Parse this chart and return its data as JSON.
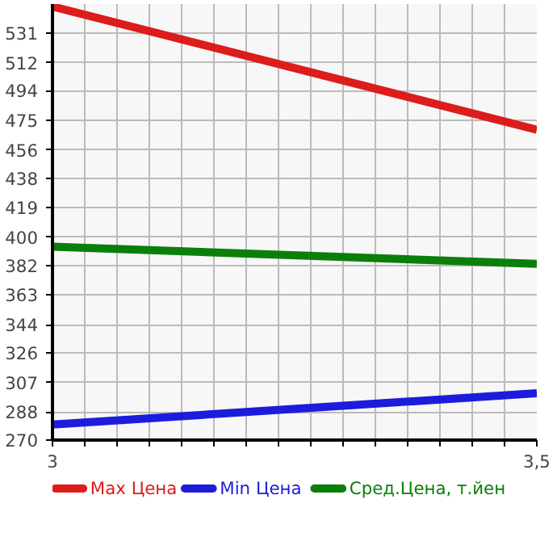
{
  "chart_data": {
    "type": "line",
    "x": [
      3,
      3.5
    ],
    "series": [
      {
        "name": "Max Цена",
        "color": "#dd1c1c",
        "values": [
          548,
          469
        ]
      },
      {
        "name": "Min Цена",
        "color": "#1c1cdd",
        "values": [
          280,
          300
        ]
      },
      {
        "name": "Сред.Цена, т.йен",
        "color": "#0a7f0a",
        "values": [
          394,
          383
        ]
      }
    ],
    "xlim": [
      3,
      3.5
    ],
    "xticks": [
      {
        "value": 3,
        "label": "3"
      },
      {
        "value": 3.033,
        "label": null
      },
      {
        "value": 3.067,
        "label": null
      },
      {
        "value": 3.1,
        "label": null
      },
      {
        "value": 3.133,
        "label": null
      },
      {
        "value": 3.167,
        "label": null
      },
      {
        "value": 3.2,
        "label": null
      },
      {
        "value": 3.233,
        "label": null
      },
      {
        "value": 3.267,
        "label": null
      },
      {
        "value": 3.3,
        "label": null
      },
      {
        "value": 3.333,
        "label": null
      },
      {
        "value": 3.367,
        "label": null
      },
      {
        "value": 3.4,
        "label": null
      },
      {
        "value": 3.433,
        "label": null
      },
      {
        "value": 3.467,
        "label": null
      },
      {
        "value": 3.5,
        "label": "3,5"
      }
    ],
    "ylim": [
      270,
      549.6
    ],
    "yticks": [
      270,
      288,
      307,
      326,
      344,
      363,
      382,
      400,
      419,
      438,
      456,
      475,
      494,
      512,
      531
    ],
    "grid": true,
    "legend": "bottom",
    "marker": "none",
    "line_style": "solid"
  }
}
